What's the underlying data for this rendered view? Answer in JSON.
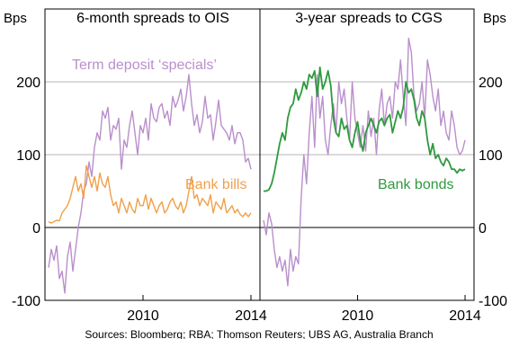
{
  "chart_data": {
    "type": "line",
    "units": {
      "left": "Bps",
      "right": "Bps"
    },
    "ylim": [
      -100,
      300
    ],
    "yticks": [
      -100,
      0,
      100,
      200
    ],
    "xticks": [
      2010,
      2014
    ],
    "xlim": [
      2006.5,
      2014.2
    ],
    "grid": true,
    "source": "Sources: Bloomberg; RBA; Thomson Reuters; UBS AG, Australia Branch",
    "colors": {
      "term_deposit": "#b98fcb",
      "bank_bills": "#f0a04b",
      "bank_bonds": "#2e9a3e"
    },
    "panels": [
      {
        "title": "6-month spreads to OIS",
        "series": [
          {
            "name": "Term deposit ‘specials’",
            "color": "#b98fcb",
            "x": [
              2006.5,
              2006.6,
              2006.7,
              2006.8,
              2006.9,
              2007.0,
              2007.1,
              2007.2,
              2007.3,
              2007.4,
              2007.5,
              2007.6,
              2007.7,
              2007.8,
              2007.9,
              2008.0,
              2008.1,
              2008.2,
              2008.3,
              2008.4,
              2008.5,
              2008.6,
              2008.7,
              2008.8,
              2008.9,
              2009.0,
              2009.1,
              2009.2,
              2009.3,
              2009.4,
              2009.5,
              2009.6,
              2009.7,
              2009.8,
              2009.9,
              2010.0,
              2010.1,
              2010.2,
              2010.3,
              2010.4,
              2010.5,
              2010.6,
              2010.7,
              2010.8,
              2010.9,
              2011.0,
              2011.1,
              2011.2,
              2011.3,
              2011.4,
              2011.5,
              2011.6,
              2011.7,
              2011.8,
              2011.9,
              2012.0,
              2012.1,
              2012.2,
              2012.3,
              2012.4,
              2012.5,
              2012.6,
              2012.7,
              2012.8,
              2012.9,
              2013.0,
              2013.1,
              2013.2,
              2013.3,
              2013.4,
              2013.5,
              2013.6,
              2013.7,
              2013.8,
              2013.9,
              2014.0
            ],
            "values": [
              -55,
              -30,
              -45,
              -25,
              -70,
              -60,
              -90,
              -40,
              -20,
              -60,
              -30,
              0,
              20,
              50,
              60,
              90,
              70,
              110,
              130,
              120,
              160,
              150,
              165,
              120,
              140,
              135,
              150,
              80,
              120,
              110,
              140,
              160,
              130,
              100,
              140,
              130,
              150,
              120,
              170,
              150,
              145,
              165,
              170,
              150,
              160,
              140,
              180,
              165,
              175,
              190,
              160,
              180,
              210,
              170,
              140,
              155,
              130,
              145,
              180,
              150,
              155,
              120,
              145,
              175,
              140,
              135,
              130,
              120,
              140,
              115,
              130,
              130,
              120,
              90,
              95,
              80
            ]
          }
        ]
      },
      {
        "title": "3-year spreads to CGS",
        "series": [
          {
            "name": "Term deposit ‘specials’",
            "color": "#b98fcb",
            "x": [
              2006.5,
              2006.6,
              2006.7,
              2006.8,
              2006.9,
              2007.0,
              2007.1,
              2007.2,
              2007.3,
              2007.4,
              2007.5,
              2007.6,
              2007.7,
              2007.8,
              2007.9,
              2008.0,
              2008.1,
              2008.2,
              2008.3,
              2008.4,
              2008.5,
              2008.6,
              2008.7,
              2008.8,
              2008.9,
              2009.0,
              2009.1,
              2009.2,
              2009.3,
              2009.4,
              2009.5,
              2009.6,
              2009.7,
              2009.8,
              2009.9,
              2010.0,
              2010.1,
              2010.2,
              2010.3,
              2010.4,
              2010.5,
              2010.6,
              2010.7,
              2010.8,
              2010.9,
              2011.0,
              2011.1,
              2011.2,
              2011.3,
              2011.4,
              2011.5,
              2011.6,
              2011.7,
              2011.8,
              2011.9,
              2012.0,
              2012.1,
              2012.2,
              2012.3,
              2012.4,
              2012.5,
              2012.6,
              2012.7,
              2012.8,
              2012.9,
              2013.0,
              2013.1,
              2013.2,
              2013.3,
              2013.4,
              2013.5,
              2013.6,
              2013.7,
              2013.8,
              2013.9,
              2014.0
            ],
            "values": [
              10,
              -10,
              20,
              5,
              -30,
              -55,
              -40,
              -60,
              -45,
              -80,
              -30,
              -60,
              -40,
              -50,
              40,
              100,
              60,
              130,
              180,
              110,
              210,
              150,
              180,
              120,
              100,
              140,
              170,
              130,
              200,
              170,
              190,
              150,
              120,
              200,
              150,
              130,
              110,
              140,
              105,
              160,
              125,
              150,
              100,
              160,
              190,
              140,
              170,
              180,
              150,
              200,
              190,
              230,
              180,
              140,
              260,
              240,
              180,
              160,
              170,
              200,
              150,
              230,
              210,
              180,
              160,
              190,
              140,
              160,
              130,
              120,
              160,
              140,
              110,
              100,
              105,
              120
            ]
          },
          {
            "name": "Bank bonds",
            "color": "#2e9a3e",
            "x": [
              2006.5,
              2006.6,
              2006.7,
              2006.8,
              2006.9,
              2007.0,
              2007.1,
              2007.2,
              2007.3,
              2007.4,
              2007.5,
              2007.6,
              2007.7,
              2007.8,
              2007.9,
              2008.0,
              2008.1,
              2008.2,
              2008.3,
              2008.4,
              2008.5,
              2008.6,
              2008.7,
              2008.8,
              2008.9,
              2009.0,
              2009.1,
              2009.2,
              2009.3,
              2009.4,
              2009.5,
              2009.6,
              2009.7,
              2009.8,
              2009.9,
              2010.0,
              2010.1,
              2010.2,
              2010.3,
              2010.4,
              2010.5,
              2010.6,
              2010.7,
              2010.8,
              2010.9,
              2011.0,
              2011.1,
              2011.2,
              2011.3,
              2011.4,
              2011.5,
              2011.6,
              2011.7,
              2011.8,
              2011.9,
              2012.0,
              2012.1,
              2012.2,
              2012.3,
              2012.4,
              2012.5,
              2012.6,
              2012.7,
              2012.8,
              2012.9,
              2013.0,
              2013.1,
              2013.2,
              2013.3,
              2013.4,
              2013.5,
              2013.6,
              2013.7,
              2013.8,
              2013.9,
              2014.0
            ],
            "values": [
              50,
              50,
              52,
              60,
              75,
              95,
              115,
              130,
              120,
              150,
              165,
              170,
              190,
              175,
              185,
              200,
              190,
              210,
              205,
              215,
              180,
              220,
              190,
              200,
              215,
              195,
              150,
              130,
              125,
              150,
              135,
              140,
              120,
              110,
              130,
              145,
              120,
              105,
              130,
              140,
              150,
              140,
              130,
              145,
              150,
              140,
              150,
              155,
              130,
              145,
              160,
              150,
              165,
              200,
              185,
              190,
              175,
              150,
              140,
              160,
              150,
              120,
              100,
              115,
              95,
              100,
              90,
              85,
              95,
              90,
              80,
              80,
              75,
              80,
              78,
              80
            ]
          }
        ]
      }
    ],
    "annotations": [
      {
        "text": "Term deposit ‘specials’",
        "panel": 0,
        "color": "#b98fcb"
      },
      {
        "text": "Bank bills",
        "panel": 0,
        "color": "#f0a04b"
      },
      {
        "text": "Bank bonds",
        "panel": 1,
        "color": "#2e9a3e"
      }
    ],
    "bank_bills": {
      "name": "Bank bills",
      "color": "#f0a04b",
      "x": [
        2006.5,
        2006.6,
        2006.7,
        2006.8,
        2006.9,
        2007.0,
        2007.1,
        2007.2,
        2007.3,
        2007.4,
        2007.5,
        2007.6,
        2007.7,
        2007.8,
        2007.9,
        2008.0,
        2008.1,
        2008.2,
        2008.3,
        2008.4,
        2008.5,
        2008.6,
        2008.7,
        2008.8,
        2008.9,
        2009.0,
        2009.1,
        2009.2,
        2009.3,
        2009.4,
        2009.5,
        2009.6,
        2009.7,
        2009.8,
        2009.9,
        2010.0,
        2010.1,
        2010.2,
        2010.3,
        2010.4,
        2010.5,
        2010.6,
        2010.7,
        2010.8,
        2010.9,
        2011.0,
        2011.1,
        2011.2,
        2011.3,
        2011.4,
        2011.5,
        2011.6,
        2011.7,
        2011.8,
        2011.9,
        2012.0,
        2012.1,
        2012.2,
        2012.3,
        2012.4,
        2012.5,
        2012.6,
        2012.7,
        2012.8,
        2012.9,
        2013.0,
        2013.1,
        2013.2,
        2013.3,
        2013.4,
        2013.5,
        2013.6,
        2013.7,
        2013.8,
        2013.9,
        2014.0
      ],
      "values": [
        8,
        6,
        8,
        10,
        9,
        20,
        25,
        30,
        40,
        55,
        70,
        50,
        60,
        40,
        85,
        70,
        55,
        70,
        50,
        75,
        60,
        55,
        70,
        45,
        30,
        35,
        20,
        40,
        30,
        20,
        35,
        25,
        20,
        40,
        30,
        30,
        45,
        25,
        40,
        30,
        20,
        30,
        35,
        20,
        25,
        35,
        40,
        30,
        25,
        35,
        20,
        30,
        50,
        70,
        40,
        45,
        30,
        40,
        35,
        30,
        45,
        20,
        35,
        30,
        25,
        40,
        20,
        25,
        30,
        20,
        25,
        18,
        15,
        20,
        15,
        20
      ]
    }
  }
}
